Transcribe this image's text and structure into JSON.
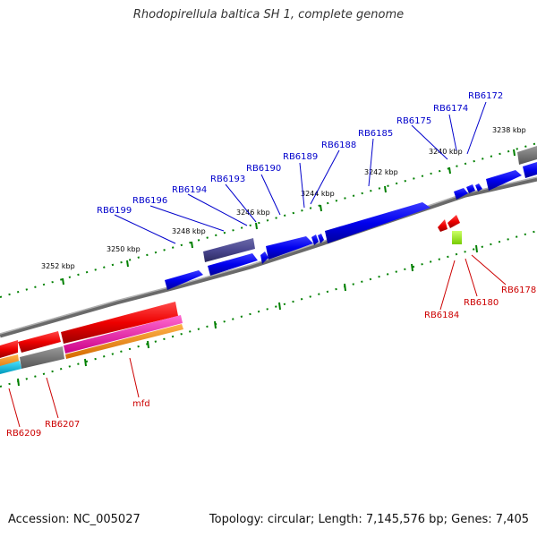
{
  "header": {
    "title": "Rhodopirellula baltica SH 1, complete genome"
  },
  "footer": {
    "accession": "Accession: NC_005027",
    "summary": "Topology: circular; Length: 7,145,576 bp; Genes: 7,405"
  },
  "scale": [
    "3238 kbp",
    "3240 kbp",
    "3242 kbp",
    "3244 kbp",
    "3246 kbp",
    "3248 kbp",
    "3250 kbp",
    "3252 kbp"
  ],
  "genes_top": [
    "RB6172",
    "RB6174",
    "RB6175",
    "RB6185",
    "RB6188",
    "RB6189",
    "RB6190",
    "RB6193",
    "RB6194",
    "RB6196",
    "RB6199"
  ],
  "genes_bottom": [
    "RB6178",
    "RB6180",
    "RB6184",
    "RB6207",
    "RB6209",
    "mfd"
  ],
  "colors": {
    "forward": "#0000ee",
    "reverse": "#ee0000",
    "backbone": "#888888",
    "ticks": "#008000",
    "label_top": "#0000cc",
    "label_bottom": "#cc0000"
  }
}
